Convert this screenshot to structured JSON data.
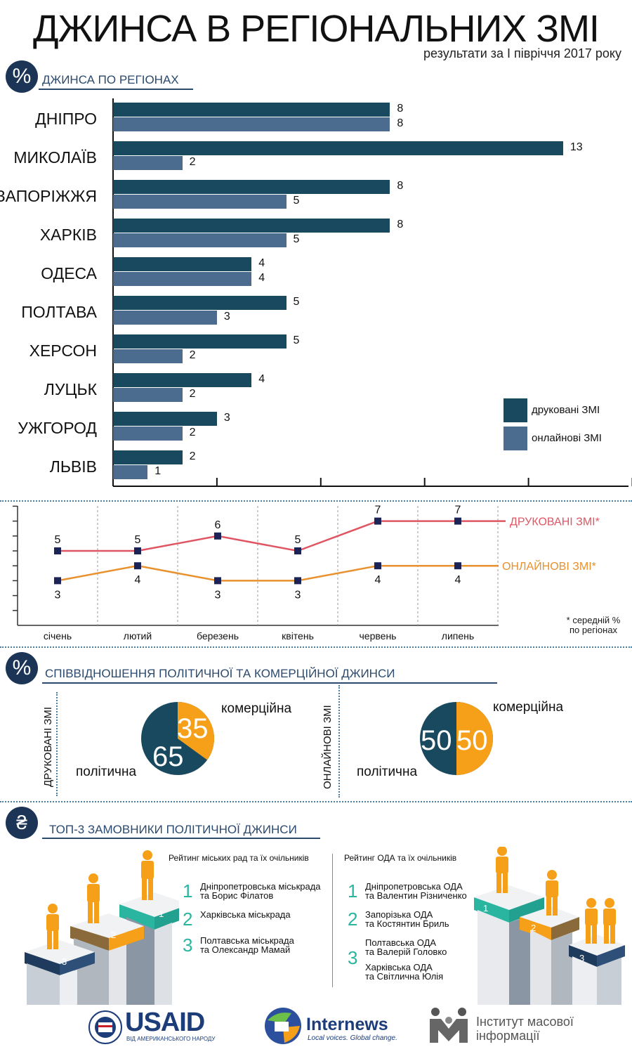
{
  "header": {
    "title": "ДЖИНСА В РЕГІОНАЛЬНИХ ЗМІ",
    "subtitle": "результати за І півріччя 2017 року"
  },
  "section1": {
    "icon": "%",
    "title": "ДЖИНСА ПО РЕГІОНАХ"
  },
  "legend": {
    "print": "друковані ЗМІ",
    "online": "онлайнові ЗМІ"
  },
  "colors": {
    "print": "#19495f",
    "online": "#4b6b8f",
    "line_print": "#e05563",
    "line_online": "#e8912e",
    "accent": "#2ab5a0",
    "orange": "#f6a01a"
  },
  "chart_data": [
    {
      "type": "bar",
      "orientation": "horizontal",
      "title": "ДЖИНСА ПО РЕГІОНАХ",
      "categories": [
        "ДНІПРО",
        "МИКОЛАЇВ",
        "ЗАПОРІЖЖЯ",
        "ХАРКІВ",
        "ОДЕСА",
        "ПОЛТАВА",
        "ХЕРСОН",
        "ЛУЦЬК",
        "УЖГОРОД",
        "ЛЬВІВ"
      ],
      "series": [
        {
          "name": "друковані ЗМІ",
          "values": [
            8,
            13,
            8,
            8,
            4,
            5,
            5,
            4,
            3,
            2
          ]
        },
        {
          "name": "онлайнові ЗМІ",
          "values": [
            8,
            2,
            5,
            5,
            4,
            3,
            2,
            2,
            2,
            1
          ]
        }
      ],
      "xlim": [
        0,
        15
      ]
    },
    {
      "type": "line",
      "categories": [
        "січень",
        "лютий",
        "березень",
        "квітень",
        "червень",
        "липень"
      ],
      "series": [
        {
          "name": "ДРУКОВАНІ ЗМІ*",
          "values": [
            5,
            5,
            6,
            5,
            7,
            7
          ]
        },
        {
          "name": "ОНЛАЙНОВІ ЗМІ*",
          "values": [
            3,
            4,
            3,
            3,
            4,
            4
          ]
        }
      ],
      "ylim": [
        0,
        8
      ],
      "note": "* середній % по регіонах"
    },
    {
      "type": "pie",
      "title": "друковані ЗМІ",
      "slices": [
        {
          "label": "комерційна",
          "value": 35
        },
        {
          "label": "політична",
          "value": 65
        }
      ]
    },
    {
      "type": "pie",
      "title": "онлайнові ЗМІ",
      "slices": [
        {
          "label": "комерційна",
          "value": 50
        },
        {
          "label": "політична",
          "value": 50
        }
      ]
    }
  ],
  "line_note": {
    "l1": "* середній %",
    "l2": "по регіонах"
  },
  "section2": {
    "icon": "%",
    "title": "СПІВВІДНОШЕННЯ ПОЛІТИЧНОЇ ТА КОМЕРЦІЙНОЇ ДЖИНСИ"
  },
  "pies": {
    "print_label": "ДРУКОВАНІ ЗМІ",
    "online_label": "ОНЛАЙНОВІ ЗМІ",
    "commercial": "комерційна",
    "political": "політична",
    "print_commercial": "35",
    "print_political": "65",
    "online_commercial": "50",
    "online_political": "50"
  },
  "section3": {
    "icon": "₴",
    "title": "ТОП-3 ЗАМОВНИКИ ПОЛІТИЧНОЇ ДЖИНСИ"
  },
  "ranking_city": {
    "heading": "Рейтинг міських рад та їх очільників",
    "items": [
      {
        "num": "1",
        "l1": "Дніпропетровська міськрада",
        "l2": "та Борис Філатов"
      },
      {
        "num": "2",
        "l1": "Харківська міськрада",
        "l2": ""
      },
      {
        "num": "3",
        "l1": "Полтавська міськрада",
        "l2": "та Олександр Мамай"
      }
    ]
  },
  "ranking_oda": {
    "heading": "Рейтинг ОДА та їх очільників",
    "items": [
      {
        "num": "1",
        "l1": "Дніпропетровська ОДА",
        "l2": "та Валентин Різниченко"
      },
      {
        "num": "2",
        "l1": "Запорізька ОДА",
        "l2": "та Костянтин Бриль"
      },
      {
        "num": "3",
        "l1": "Полтавська ОДА",
        "l2": "та Валерій Головко"
      },
      {
        "num": "",
        "l1": "Харківська ОДА",
        "l2": "та Світлична Юлія"
      }
    ]
  },
  "podium": {
    "n1": "1",
    "n2": "2",
    "n3": "3"
  },
  "logos": {
    "usaid": "USAID",
    "usaid_sub": "ВІД АМЕРИКАНСЬКОГО НАРОДУ",
    "internews": "Internews",
    "internews_sub": "Local voices. Global change.",
    "imi_l1": "Інститут масової",
    "imi_l2": "інформації"
  }
}
